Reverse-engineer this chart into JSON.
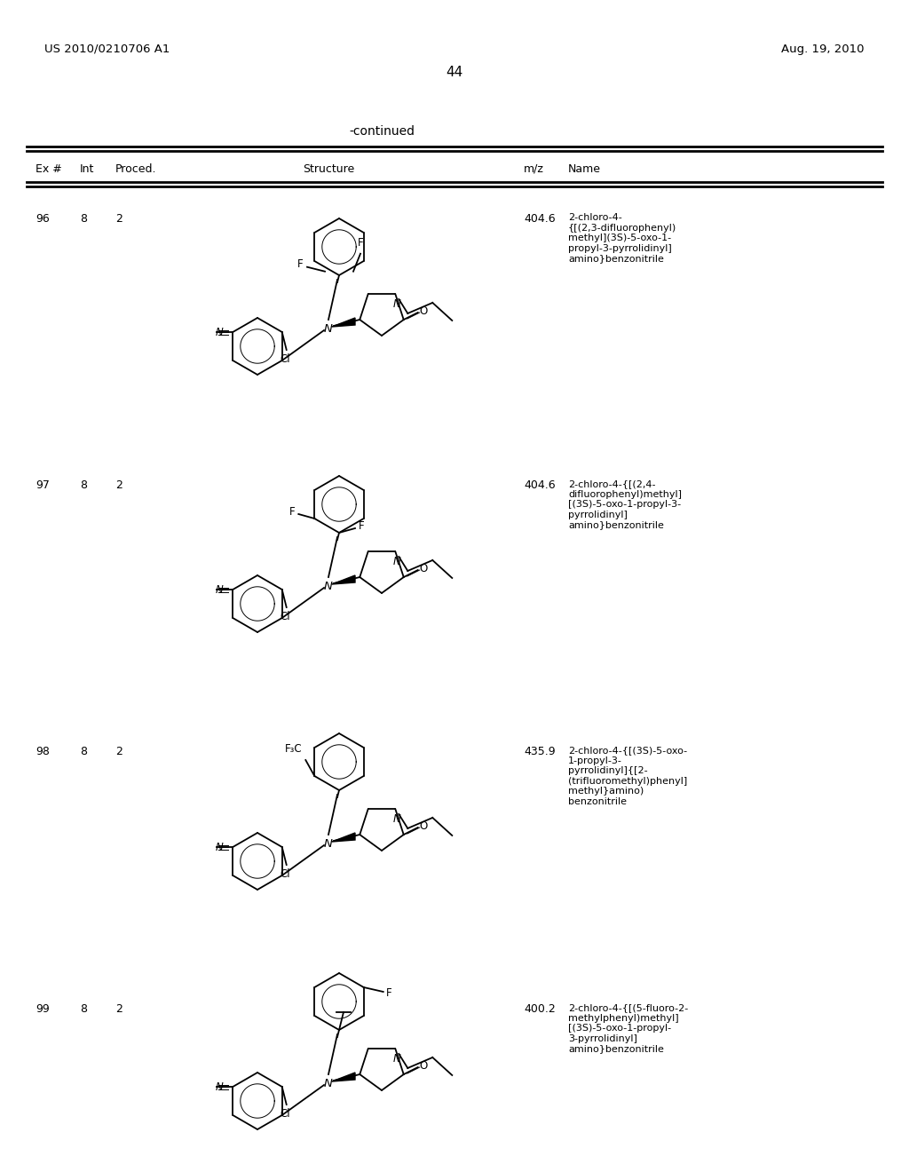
{
  "page_number": "44",
  "patent_number": "US 2010/0210706 A1",
  "patent_date": "Aug. 19, 2010",
  "continued_label": "-continued",
  "table_headers": [
    "Ex #",
    "Int",
    "Proced.",
    "Structure",
    "m/z",
    "Name"
  ],
  "rows": [
    {
      "ex": "96",
      "int": "8",
      "proc": "2",
      "mz": "404.6",
      "name": "2-chloro-4-\n{[(2,3-difluorophenyl)\nmethyl](3S)-5-oxo-1-\npropyl-3-pyrrolidinyl]\namino}benzonitrile"
    },
    {
      "ex": "97",
      "int": "8",
      "proc": "2",
      "mz": "404.6",
      "name": "2-chloro-4-{[(2,4-\ndifluorophenyl)methyl]\n[(3S)-5-oxo-1-propyl-3-\npyrrolidinyl]\namino}benzonitrile"
    },
    {
      "ex": "98",
      "int": "8",
      "proc": "2",
      "mz": "435.9",
      "name": "2-chloro-4-{[(3S)-5-oxo-\n1-propyl-3-\npyrrolidinyl]{[2-\n(trifluoromethyl)phenyl]\nmethyl}amino)\nbenzonitrile"
    },
    {
      "ex": "99",
      "int": "8",
      "proc": "2",
      "mz": "400.2",
      "name": "2-chloro-4-{[(5-fluoro-2-\nmethylphenyl)methyl]\n[(3S)-5-oxo-1-propyl-\n3-pyrrolidinyl]\namino}benzonitrile"
    }
  ],
  "background": "#ffffff",
  "text_color": "#000000"
}
